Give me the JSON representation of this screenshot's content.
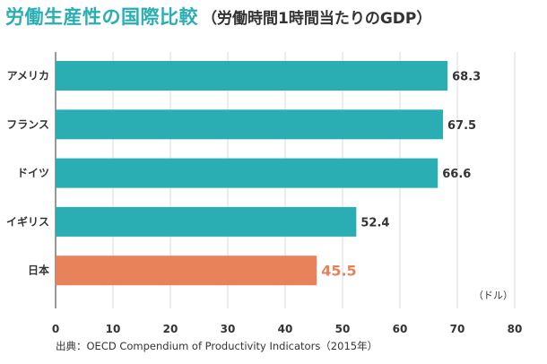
{
  "title": "労働生産性の国際比較",
  "subtitle": "（労働時間1時間当たりのGDP）",
  "source": "出典：OECD Compendium of Productivity Indicators（2015年）",
  "chart_data": {
    "type": "bar",
    "orientation": "horizontal",
    "categories": [
      "アメリカ",
      "フランス",
      "ドイツ",
      "イギリス",
      "日本"
    ],
    "values": [
      68.3,
      67.5,
      66.6,
      52.4,
      45.5
    ],
    "value_labels": [
      "68.3",
      "67.5",
      "66.6",
      "52.4",
      "45.5"
    ],
    "unit_label": "（ドル）",
    "xlim": [
      0,
      80
    ],
    "xticks": [
      "0",
      "10",
      "20",
      "30",
      "40",
      "50",
      "60",
      "70",
      "80"
    ],
    "grid": true,
    "highlight_index": 4,
    "colors": {
      "bar": "#2aaeb4",
      "highlight": "#e8825a",
      "grid": "#d9d9d9",
      "label": "#333333",
      "highlight_label": "#e8825a"
    }
  }
}
